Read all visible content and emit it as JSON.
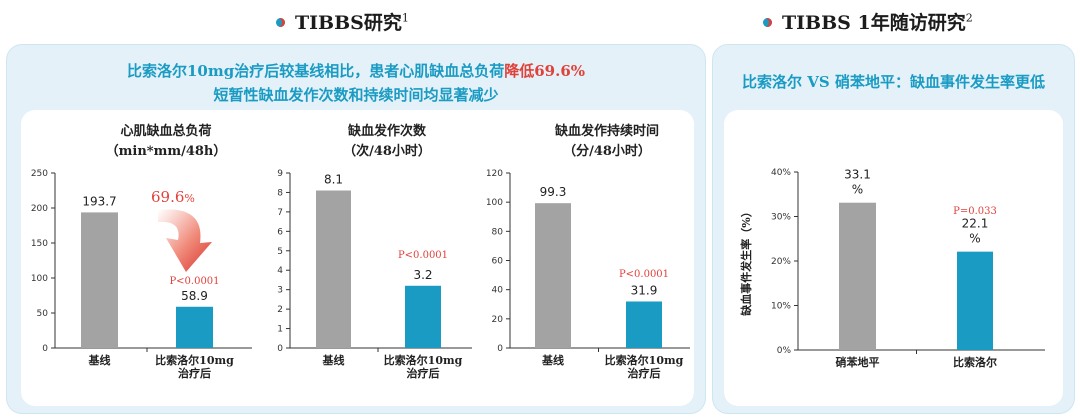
{
  "header": {
    "left_title": "TIBBS研究",
    "left_sup": "1",
    "right_title": "TIBBS 1年随访研究",
    "right_sup": "2"
  },
  "left_panel": {
    "headline_1_pre": "比索洛尔10mg治疗后较基线相比，患者心肌缺血总负荷",
    "headline_1_red": "降低69.6%",
    "headline_2": "短暂性缺血发作次数和持续时间均显著减少"
  },
  "right_panel": {
    "headline": "比索洛尔 VS 硝苯地平：缺血事件发生率更低"
  },
  "colors": {
    "gray_bar": "#a3a3a3",
    "blue_bar": "#1a9bc3",
    "accent_red": "#e0413a"
  },
  "chart_data": [
    {
      "type": "bar",
      "title_lines": [
        "心肌缺血总负荷",
        "（min*mm/48h）"
      ],
      "categories": [
        "基线",
        "比索洛尔10mg治疗后"
      ],
      "category_lines": [
        [
          "基线"
        ],
        [
          "比索洛尔10mg",
          "治疗后"
        ]
      ],
      "values": [
        193.7,
        58.9
      ],
      "value_labels": [
        "193.7",
        "58.9"
      ],
      "ylim": [
        0,
        250
      ],
      "yticks": [
        0,
        50,
        100,
        150,
        200,
        250
      ],
      "ytick_labels": [
        "0",
        "50",
        "100",
        "150",
        "200",
        "250"
      ],
      "annotation": "P<0.0001",
      "reduction_label": "69.6",
      "reduction_unit": "%"
    },
    {
      "type": "bar",
      "title_lines": [
        "缺血发作次数",
        "（次/48小时）"
      ],
      "categories": [
        "基线",
        "比索洛尔10mg治疗后"
      ],
      "category_lines": [
        [
          "基线"
        ],
        [
          "比索洛尔10mg",
          "治疗后"
        ]
      ],
      "values": [
        8.1,
        3.2
      ],
      "value_labels": [
        "8.1",
        "3.2"
      ],
      "ylim": [
        0,
        9
      ],
      "yticks": [
        0,
        1,
        2,
        3,
        4,
        5,
        6,
        7,
        8,
        9
      ],
      "ytick_labels": [
        "0",
        "1",
        "2",
        "3",
        "4",
        "5",
        "6",
        "7",
        "8",
        "9"
      ],
      "annotation": "P<0.0001"
    },
    {
      "type": "bar",
      "title_lines": [
        "缺血发作持续时间",
        "（分/48小时）"
      ],
      "categories": [
        "基线",
        "比索洛尔10mg治疗后"
      ],
      "category_lines": [
        [
          "基线"
        ],
        [
          "比索洛尔10mg",
          "治疗后"
        ]
      ],
      "values": [
        99.3,
        31.9
      ],
      "value_labels": [
        "99.3",
        "31.9"
      ],
      "ylim": [
        0,
        120
      ],
      "yticks": [
        0,
        20,
        40,
        60,
        80,
        100,
        120
      ],
      "ytick_labels": [
        "0",
        "20",
        "40",
        "60",
        "80",
        "100",
        "120"
      ],
      "annotation": "P<0.0001"
    },
    {
      "type": "bar",
      "ylabel": "缺血事件发生率（%）",
      "categories": [
        "硝苯地平",
        "比索洛尔"
      ],
      "category_lines": [
        [
          "硝苯地平"
        ],
        [
          "比索洛尔"
        ]
      ],
      "values": [
        33.1,
        22.1
      ],
      "value_labels": [
        "33.1",
        "22.1"
      ],
      "value_unit": "%",
      "ylim": [
        0,
        40
      ],
      "yticks": [
        0,
        10,
        20,
        30,
        40
      ],
      "ytick_labels": [
        "0%",
        "10%",
        "20%",
        "30%",
        "40%"
      ],
      "annotation": "P=0.033"
    }
  ]
}
